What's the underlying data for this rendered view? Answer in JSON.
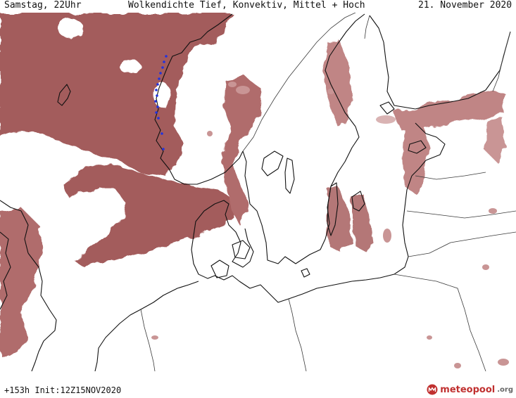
{
  "header": {
    "left": "Samstag, 22Uhr",
    "title": "Wolkendichte  Tief, Konvektiv, Mittel + Hoch",
    "date": "21. November 2020"
  },
  "footer": {
    "run": "+153h Init:12Z15NOV2020",
    "brand_main": "meteopool",
    "brand_tld": ".org"
  },
  "colors": {
    "cloud_dense": "#a35b5b",
    "cloud_light": "#c99595",
    "coast": "#111111",
    "border": "#3a3a3a",
    "precip_dot": "#2233dd",
    "brand": "#c0302f"
  }
}
